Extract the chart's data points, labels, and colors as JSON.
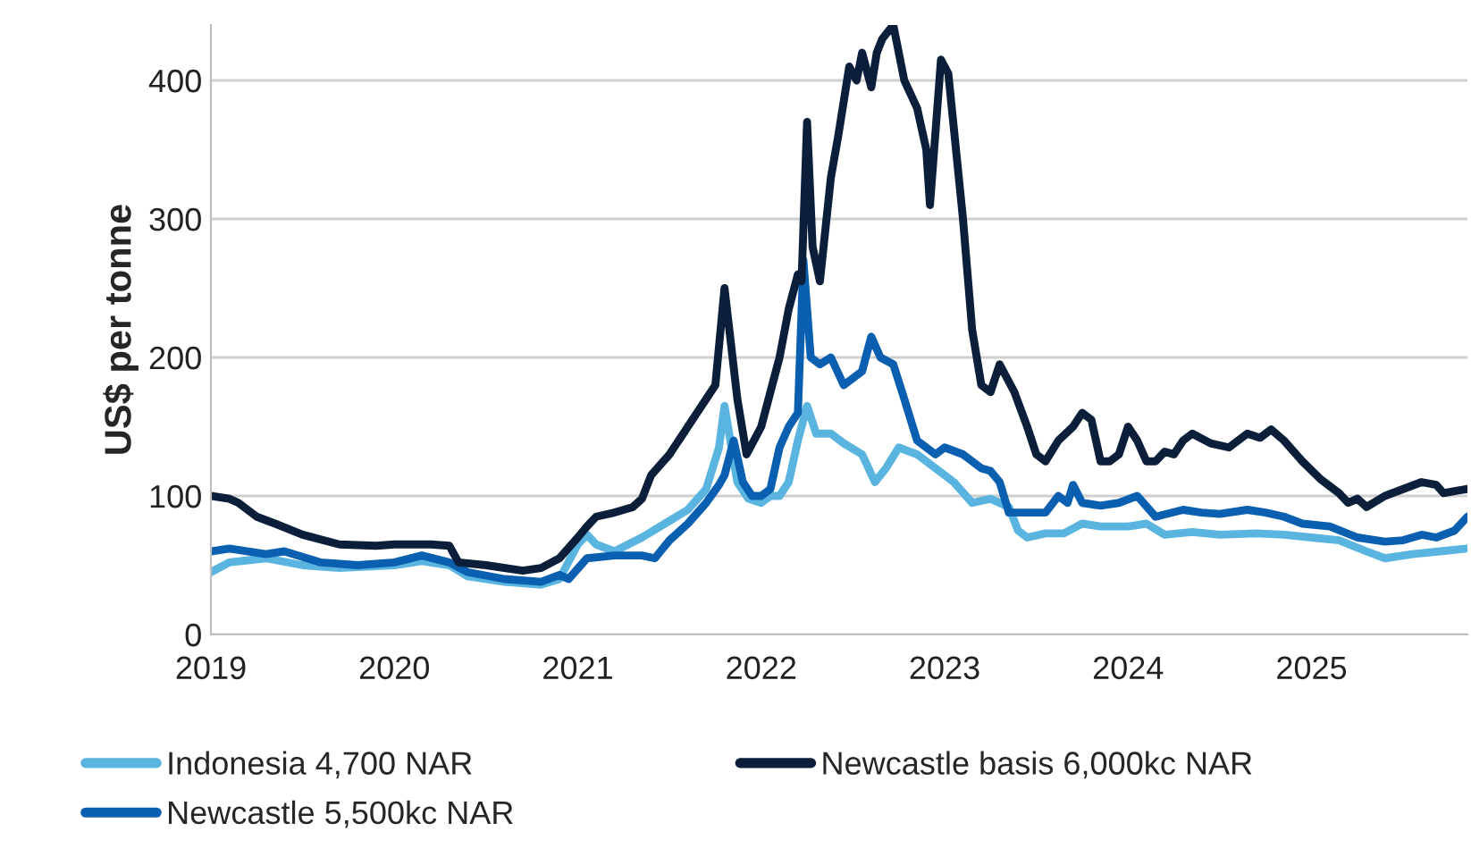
{
  "chart_data": {
    "type": "line",
    "ylabel": "US$ per tonne",
    "xlim": [
      2019,
      2025.85
    ],
    "xticks": [
      2019,
      2020,
      2021,
      2022,
      2023,
      2024,
      2025
    ],
    "ylim": [
      0,
      440
    ],
    "yticks": [
      0,
      100,
      200,
      300,
      400
    ],
    "grid": "y",
    "legend": "bottom",
    "marker": "none",
    "line_style": "solid",
    "series": [
      {
        "name": "Indonesia 4,700 NAR",
        "color": "#5ab4e0",
        "x": [
          2019.0,
          2019.1,
          2019.3,
          2019.5,
          2019.7,
          2020.0,
          2020.15,
          2020.3,
          2020.4,
          2020.6,
          2020.8,
          2020.9,
          2021.0,
          2021.05,
          2021.1,
          2021.2,
          2021.35,
          2021.5,
          2021.6,
          2021.7,
          2021.77,
          2021.8,
          2021.87,
          2021.93,
          2022.0,
          2022.05,
          2022.1,
          2022.15,
          2022.2,
          2022.25,
          2022.3,
          2022.38,
          2022.45,
          2022.55,
          2022.62,
          2022.68,
          2022.75,
          2022.85,
          2022.95,
          2023.05,
          2023.15,
          2023.25,
          2023.35,
          2023.4,
          2023.45,
          2023.55,
          2023.65,
          2023.75,
          2023.85,
          2024.0,
          2024.1,
          2024.2,
          2024.35,
          2024.5,
          2024.7,
          2024.85,
          2025.0,
          2025.15,
          2025.3,
          2025.4,
          2025.55,
          2025.7,
          2025.85
        ],
        "values": [
          45,
          52,
          55,
          50,
          48,
          50,
          53,
          50,
          42,
          38,
          36,
          40,
          65,
          72,
          65,
          60,
          70,
          82,
          90,
          105,
          135,
          165,
          110,
          98,
          95,
          100,
          100,
          110,
          140,
          165,
          145,
          145,
          138,
          130,
          110,
          120,
          135,
          130,
          120,
          110,
          95,
          98,
          92,
          75,
          70,
          73,
          73,
          80,
          78,
          78,
          80,
          72,
          74,
          72,
          73,
          72,
          70,
          68,
          60,
          55,
          58,
          60,
          62
        ]
      },
      {
        "name": "Newcastle 5,500kc NAR",
        "color": "#0a5fb0",
        "x": [
          2019.0,
          2019.1,
          2019.3,
          2019.4,
          2019.6,
          2019.8,
          2020.0,
          2020.15,
          2020.3,
          2020.4,
          2020.6,
          2020.8,
          2020.9,
          2020.95,
          2021.05,
          2021.2,
          2021.35,
          2021.42,
          2021.5,
          2021.6,
          2021.7,
          2021.77,
          2021.8,
          2021.85,
          2021.9,
          2021.95,
          2022.0,
          2022.05,
          2022.1,
          2022.15,
          2022.2,
          2022.23,
          2022.27,
          2022.32,
          2022.38,
          2022.45,
          2022.55,
          2022.6,
          2022.65,
          2022.72,
          2022.78,
          2022.85,
          2022.95,
          2023.0,
          2023.1,
          2023.2,
          2023.25,
          2023.3,
          2023.35,
          2023.45,
          2023.55,
          2023.62,
          2023.67,
          2023.7,
          2023.75,
          2023.85,
          2023.95,
          2024.05,
          2024.15,
          2024.3,
          2024.4,
          2024.5,
          2024.65,
          2024.75,
          2024.85,
          2024.95,
          2025.1,
          2025.25,
          2025.4,
          2025.5,
          2025.6,
          2025.68,
          2025.78,
          2025.85
        ],
        "values": [
          60,
          62,
          58,
          60,
          52,
          50,
          52,
          57,
          52,
          45,
          40,
          38,
          43,
          40,
          55,
          57,
          57,
          55,
          68,
          80,
          95,
          108,
          115,
          140,
          110,
          100,
          100,
          105,
          135,
          150,
          160,
          270,
          200,
          195,
          200,
          180,
          190,
          215,
          200,
          195,
          170,
          140,
          130,
          135,
          130,
          120,
          118,
          110,
          88,
          88,
          88,
          100,
          95,
          108,
          95,
          93,
          95,
          100,
          85,
          90,
          88,
          87,
          90,
          88,
          85,
          80,
          78,
          70,
          67,
          68,
          72,
          70,
          75,
          85
        ]
      },
      {
        "name": "Newcastle basis 6,000kc NAR",
        "color": "#0b1f3a",
        "x": [
          2019.0,
          2019.1,
          2019.15,
          2019.25,
          2019.35,
          2019.5,
          2019.7,
          2019.9,
          2020.0,
          2020.2,
          2020.3,
          2020.35,
          2020.5,
          2020.7,
          2020.8,
          2020.9,
          2021.0,
          2021.05,
          2021.1,
          2021.2,
          2021.3,
          2021.35,
          2021.4,
          2021.5,
          2021.6,
          2021.7,
          2021.75,
          2021.8,
          2021.87,
          2021.92,
          2022.0,
          2022.05,
          2022.1,
          2022.15,
          2022.2,
          2022.22,
          2022.25,
          2022.28,
          2022.32,
          2022.38,
          2022.42,
          2022.48,
          2022.52,
          2022.55,
          2022.6,
          2022.63,
          2022.66,
          2022.72,
          2022.78,
          2022.85,
          2022.9,
          2022.92,
          2022.98,
          2023.02,
          2023.1,
          2023.15,
          2023.2,
          2023.25,
          2023.3,
          2023.38,
          2023.45,
          2023.5,
          2023.55,
          2023.62,
          2023.7,
          2023.75,
          2023.8,
          2023.85,
          2023.9,
          2023.95,
          2024.0,
          2024.05,
          2024.1,
          2024.15,
          2024.2,
          2024.25,
          2024.3,
          2024.35,
          2024.45,
          2024.55,
          2024.65,
          2024.72,
          2024.78,
          2024.85,
          2024.95,
          2025.05,
          2025.15,
          2025.2,
          2025.25,
          2025.3,
          2025.4,
          2025.5,
          2025.6,
          2025.68,
          2025.72,
          2025.8,
          2025.85
        ],
        "values": [
          100,
          98,
          95,
          85,
          80,
          72,
          65,
          64,
          65,
          65,
          64,
          52,
          50,
          46,
          48,
          55,
          70,
          78,
          85,
          88,
          92,
          98,
          115,
          130,
          150,
          170,
          180,
          250,
          170,
          130,
          150,
          175,
          200,
          235,
          260,
          255,
          370,
          280,
          255,
          330,
          360,
          410,
          400,
          420,
          395,
          420,
          430,
          440,
          400,
          380,
          350,
          310,
          415,
          405,
          300,
          220,
          180,
          175,
          195,
          175,
          150,
          130,
          125,
          140,
          150,
          160,
          155,
          125,
          125,
          130,
          150,
          140,
          125,
          125,
          132,
          130,
          140,
          145,
          138,
          135,
          145,
          142,
          148,
          140,
          125,
          112,
          102,
          95,
          98,
          92,
          100,
          105,
          110,
          108,
          102,
          104,
          105
        ]
      }
    ]
  }
}
